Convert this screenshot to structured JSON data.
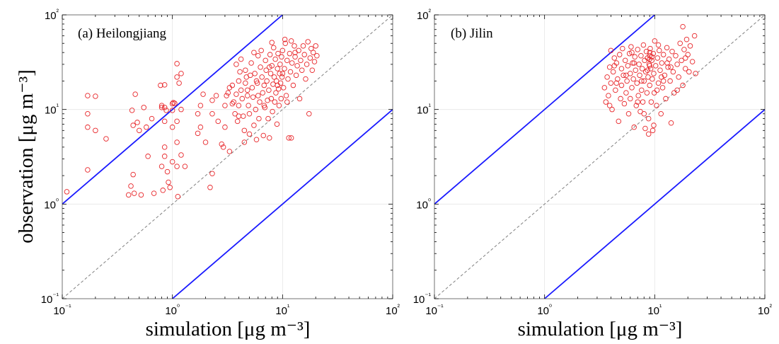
{
  "chart_data": [
    {
      "type": "scatter",
      "title": "(a) Heilongjiang",
      "xlabel": "simulation [μg m⁻³]",
      "ylabel": "observation [μg m⁻³]",
      "xscale": "log",
      "yscale": "log",
      "xlim": [
        0.1,
        100
      ],
      "ylim": [
        0.1,
        100
      ],
      "xticks": [
        "10⁻¹",
        "10⁰",
        "10¹",
        "10²"
      ],
      "yticks": [
        "10⁻¹",
        "10⁰",
        "10¹",
        "10²"
      ],
      "grid": true,
      "reference_lines": [
        {
          "kind": "1:1",
          "ratio": 1,
          "style": "dashed",
          "color": "#808080"
        },
        {
          "kind": "factor-10 upper",
          "ratio": 10,
          "style": "solid",
          "color": "#1a1aff"
        },
        {
          "kind": "factor-10 lower",
          "ratio": 0.1,
          "style": "solid",
          "color": "#1a1aff"
        }
      ],
      "marker": {
        "shape": "open-circle",
        "color": "#e8262a"
      },
      "points": [
        [
          0.11,
          1.35
        ],
        [
          0.17,
          14
        ],
        [
          0.17,
          9
        ],
        [
          0.17,
          6.5
        ],
        [
          0.17,
          2.3
        ],
        [
          0.2,
          13.8
        ],
        [
          0.2,
          6
        ],
        [
          0.25,
          4.9
        ],
        [
          0.4,
          1.25
        ],
        [
          0.42,
          1.55
        ],
        [
          0.43,
          9.8
        ],
        [
          0.44,
          6.8
        ],
        [
          0.44,
          2.05
        ],
        [
          0.45,
          1.3
        ],
        [
          0.46,
          14.5
        ],
        [
          0.48,
          7.3
        ],
        [
          0.5,
          6
        ],
        [
          0.52,
          1.25
        ],
        [
          0.55,
          10.5
        ],
        [
          0.58,
          6.5
        ],
        [
          0.6,
          3.2
        ],
        [
          0.65,
          8
        ],
        [
          0.68,
          1.3
        ],
        [
          0.78,
          18
        ],
        [
          0.8,
          11
        ],
        [
          0.8,
          10.5
        ],
        [
          0.8,
          2.5
        ],
        [
          0.82,
          1.4
        ],
        [
          0.85,
          18.2
        ],
        [
          0.85,
          10.5
        ],
        [
          0.85,
          7.5
        ],
        [
          0.85,
          4
        ],
        [
          0.85,
          3.2
        ],
        [
          0.88,
          9.8
        ],
        [
          0.9,
          2.2
        ],
        [
          0.92,
          1.7
        ],
        [
          0.95,
          1.5
        ],
        [
          1.0,
          11.5
        ],
        [
          1.0,
          9.8
        ],
        [
          1.0,
          6.5
        ],
        [
          1.0,
          2.8
        ],
        [
          1.02,
          11.8
        ],
        [
          1.05,
          11.6
        ],
        [
          1.1,
          30.5
        ],
        [
          1.1,
          22
        ],
        [
          1.1,
          7.5
        ],
        [
          1.1,
          4.5
        ],
        [
          1.1,
          2.5
        ],
        [
          1.12,
          1.2
        ],
        [
          1.15,
          19
        ],
        [
          1.2,
          24
        ],
        [
          1.2,
          10
        ],
        [
          1.2,
          3.3
        ],
        [
          1.3,
          2.5
        ],
        [
          1.7,
          9
        ],
        [
          1.7,
          5.6
        ],
        [
          1.8,
          11
        ],
        [
          1.8,
          6.5
        ],
        [
          1.9,
          14.5
        ],
        [
          2.0,
          4.5
        ],
        [
          2.2,
          1.5
        ],
        [
          2.3,
          12.5
        ],
        [
          2.3,
          9
        ],
        [
          2.3,
          2.1
        ],
        [
          2.5,
          14
        ],
        [
          2.6,
          7.5
        ],
        [
          2.8,
          4.3
        ],
        [
          2.9,
          4
        ],
        [
          3.0,
          6.5
        ],
        [
          3.0,
          11
        ],
        [
          3.1,
          14
        ],
        [
          3.2,
          15
        ],
        [
          3.3,
          17
        ],
        [
          3.3,
          3.6
        ],
        [
          3.5,
          18
        ],
        [
          3.6,
          12
        ],
        [
          3.7,
          9
        ],
        [
          3.8,
          30
        ],
        [
          3.8,
          14.5
        ],
        [
          3.9,
          7.5
        ],
        [
          4.0,
          20
        ],
        [
          4.0,
          11
        ],
        [
          4.1,
          25
        ],
        [
          4.2,
          16
        ],
        [
          4.3,
          13
        ],
        [
          4.4,
          8.5
        ],
        [
          4.5,
          6
        ],
        [
          4.5,
          4.5
        ],
        [
          4.6,
          19
        ],
        [
          4.6,
          26
        ],
        [
          4.7,
          22
        ],
        [
          4.8,
          14
        ],
        [
          4.9,
          11
        ],
        [
          5.0,
          9
        ],
        [
          5.0,
          5.5
        ],
        [
          5.1,
          23
        ],
        [
          5.2,
          31
        ],
        [
          5.3,
          17
        ],
        [
          5.4,
          13.5
        ],
        [
          5.5,
          6.8
        ],
        [
          5.6,
          24
        ],
        [
          5.7,
          10
        ],
        [
          5.8,
          4.8
        ],
        [
          5.9,
          19
        ],
        [
          6.0,
          37
        ],
        [
          6.0,
          14
        ],
        [
          6.1,
          8
        ],
        [
          6.2,
          12
        ],
        [
          6.3,
          28
        ],
        [
          6.4,
          42
        ],
        [
          6.5,
          22
        ],
        [
          6.6,
          15
        ],
        [
          6.7,
          5.3
        ],
        [
          6.8,
          18
        ],
        [
          6.9,
          10.5
        ],
        [
          7.0,
          33
        ],
        [
          7.1,
          26
        ],
        [
          7.2,
          20
        ],
        [
          7.3,
          12.5
        ],
        [
          7.4,
          8
        ],
        [
          7.5,
          16
        ],
        [
          7.6,
          5
        ],
        [
          7.7,
          38
        ],
        [
          7.8,
          24
        ],
        [
          7.9,
          13
        ],
        [
          8.0,
          29
        ],
        [
          8.1,
          9.5
        ],
        [
          8.2,
          18.5
        ],
        [
          8.3,
          45
        ],
        [
          8.4,
          22
        ],
        [
          8.5,
          12
        ],
        [
          8.6,
          34
        ],
        [
          8.7,
          15
        ],
        [
          8.8,
          20
        ],
        [
          8.9,
          7
        ],
        [
          9.0,
          27
        ],
        [
          9.1,
          39
        ],
        [
          9.2,
          16.5
        ],
        [
          9.3,
          11
        ],
        [
          9.4,
          24
        ],
        [
          9.5,
          30
        ],
        [
          9.6,
          19
        ],
        [
          9.7,
          13
        ],
        [
          9.8,
          36
        ],
        [
          9.9,
          22
        ],
        [
          10.0,
          42
        ],
        [
          10.2,
          17
        ],
        [
          10.4,
          27
        ],
        [
          10.6,
          50
        ],
        [
          10.8,
          14
        ],
        [
          11.0,
          33
        ],
        [
          11.2,
          21
        ],
        [
          11.4,
          5
        ],
        [
          11.6,
          39
        ],
        [
          11.8,
          25
        ],
        [
          12.0,
          5
        ],
        [
          12.2,
          31
        ],
        [
          12.5,
          18
        ],
        [
          12.8,
          47
        ],
        [
          13.0,
          36
        ],
        [
          13.3,
          23
        ],
        [
          13.6,
          29
        ],
        [
          14.0,
          42
        ],
        [
          14.3,
          13
        ],
        [
          14.6,
          33
        ],
        [
          15.0,
          26
        ],
        [
          15.4,
          47
        ],
        [
          15.8,
          38
        ],
        [
          16.2,
          21
        ],
        [
          16.6,
          30
        ],
        [
          17.0,
          52
        ],
        [
          17.4,
          9
        ],
        [
          17.8,
          35
        ],
        [
          18.2,
          44
        ],
        [
          18.6,
          26
        ],
        [
          19.0,
          40
        ],
        [
          19.5,
          32
        ],
        [
          20.0,
          47
        ],
        [
          20.5,
          37
        ],
        [
          4.2,
          34
        ],
        [
          5.5,
          40
        ],
        [
          8.0,
          51
        ],
        [
          10.5,
          55
        ],
        [
          12.0,
          53
        ],
        [
          3.5,
          11.5
        ],
        [
          4.0,
          8.5
        ],
        [
          4.8,
          16
        ],
        [
          5.8,
          20
        ],
        [
          6.8,
          11
        ],
        [
          7.6,
          28
        ],
        [
          9.0,
          18
        ],
        [
          10.0,
          24
        ],
        [
          11.0,
          12
        ],
        [
          13.0,
          40
        ]
      ]
    },
    {
      "type": "scatter",
      "title": "(b) Jilin",
      "xlabel": "simulation [μg m⁻³]",
      "ylabel": "",
      "xscale": "log",
      "yscale": "log",
      "xlim": [
        0.1,
        100
      ],
      "ylim": [
        0.1,
        100
      ],
      "xticks": [
        "10⁻¹",
        "10⁰",
        "10¹",
        "10²"
      ],
      "yticks": [
        "10⁻¹",
        "10⁰",
        "10¹",
        "10²"
      ],
      "grid": true,
      "reference_lines": [
        {
          "kind": "1:1",
          "ratio": 1,
          "style": "dashed",
          "color": "#808080"
        },
        {
          "kind": "factor-10 upper",
          "ratio": 10,
          "style": "solid",
          "color": "#1a1aff"
        },
        {
          "kind": "factor-10 lower",
          "ratio": 0.1,
          "style": "solid",
          "color": "#1a1aff"
        }
      ],
      "marker": {
        "shape": "open-circle",
        "color": "#e8262a"
      },
      "points": [
        [
          3.5,
          17
        ],
        [
          3.6,
          12
        ],
        [
          3.7,
          22
        ],
        [
          3.8,
          14
        ],
        [
          3.9,
          28
        ],
        [
          4.0,
          19
        ],
        [
          4.0,
          42
        ],
        [
          4.1,
          10
        ],
        [
          4.2,
          25
        ],
        [
          4.3,
          35
        ],
        [
          4.4,
          16
        ],
        [
          4.5,
          31
        ],
        [
          4.6,
          21
        ],
        [
          4.7,
          7.5
        ],
        [
          4.8,
          38
        ],
        [
          4.9,
          13
        ],
        [
          5.0,
          27
        ],
        [
          5.0,
          18
        ],
        [
          5.1,
          44
        ],
        [
          5.2,
          23
        ],
        [
          5.3,
          11.5
        ],
        [
          5.4,
          33
        ],
        [
          5.5,
          15
        ],
        [
          5.6,
          20
        ],
        [
          5.7,
          29
        ],
        [
          5.8,
          9
        ],
        [
          5.9,
          39
        ],
        [
          6.0,
          24
        ],
        [
          6.0,
          13
        ],
        [
          6.1,
          46
        ],
        [
          6.2,
          17
        ],
        [
          6.3,
          31
        ],
        [
          6.4,
          21
        ],
        [
          6.5,
          6.5
        ],
        [
          6.6,
          36
        ],
        [
          6.7,
          26
        ],
        [
          6.8,
          11
        ],
        [
          6.9,
          19
        ],
        [
          7.0,
          43
        ],
        [
          7.1,
          14
        ],
        [
          7.2,
          30
        ],
        [
          7.3,
          23
        ],
        [
          7.4,
          9.5
        ],
        [
          7.5,
          37
        ],
        [
          7.6,
          16
        ],
        [
          7.7,
          27
        ],
        [
          7.8,
          12
        ],
        [
          7.9,
          48
        ],
        [
          8.0,
          20
        ],
        [
          8.1,
          33
        ],
        [
          8.2,
          6.3
        ],
        [
          8.3,
          25
        ],
        [
          8.4,
          41
        ],
        [
          8.5,
          15
        ],
        [
          8.6,
          35
        ],
        [
          8.7,
          22
        ],
        [
          8.8,
          8
        ],
        [
          8.9,
          30
        ],
        [
          9.0,
          18
        ],
        [
          9.0,
          37
        ],
        [
          9.1,
          44
        ],
        [
          9.2,
          27
        ],
        [
          9.3,
          12
        ],
        [
          9.4,
          33
        ],
        [
          9.5,
          21
        ],
        [
          9.6,
          6
        ],
        [
          9.7,
          39
        ],
        [
          9.8,
          24
        ],
        [
          9.9,
          15
        ],
        [
          10.0,
          53
        ],
        [
          10.2,
          29
        ],
        [
          10.4,
          11
        ],
        [
          10.6,
          35
        ],
        [
          10.8,
          19
        ],
        [
          11.0,
          42
        ],
        [
          11.2,
          26
        ],
        [
          11.4,
          9
        ],
        [
          11.6,
          31
        ],
        [
          11.8,
          17
        ],
        [
          12.0,
          38
        ],
        [
          12.3,
          23
        ],
        [
          12.6,
          13
        ],
        [
          12.9,
          45
        ],
        [
          13.2,
          28
        ],
        [
          13.5,
          34
        ],
        [
          13.8,
          20
        ],
        [
          14.1,
          7.2
        ],
        [
          14.4,
          41
        ],
        [
          14.7,
          25
        ],
        [
          15.0,
          15
        ],
        [
          15.5,
          37
        ],
        [
          16.0,
          30
        ],
        [
          16.5,
          22
        ],
        [
          17.0,
          50
        ],
        [
          17.5,
          33
        ],
        [
          18.0,
          18
        ],
        [
          18.0,
          75
        ],
        [
          18.5,
          43
        ],
        [
          19.0,
          27
        ],
        [
          19.5,
          55
        ],
        [
          20.0,
          38
        ],
        [
          21.0,
          47
        ],
        [
          22.0,
          32
        ],
        [
          23.0,
          60
        ],
        [
          23.5,
          24
        ],
        [
          8.8,
          5.5
        ],
        [
          9.8,
          6.8
        ],
        [
          5.5,
          23
        ],
        [
          4.5,
          19
        ],
        [
          6.5,
          31
        ],
        [
          9.0,
          34
        ],
        [
          9.0,
          40
        ],
        [
          9.0,
          29
        ],
        [
          8.6,
          26
        ],
        [
          9.4,
          36
        ],
        [
          13.0,
          31
        ],
        [
          12.0,
          20
        ],
        [
          7.0,
          12
        ],
        [
          8.0,
          9
        ],
        [
          10.5,
          16
        ],
        [
          3.9,
          11
        ],
        [
          4.3,
          29
        ],
        [
          6.2,
          40
        ],
        [
          7.6,
          20
        ],
        [
          10.8,
          48
        ],
        [
          11.5,
          22
        ],
        [
          14.0,
          28
        ],
        [
          16.0,
          16
        ],
        [
          19.0,
          35
        ],
        [
          20.5,
          25
        ]
      ]
    }
  ]
}
